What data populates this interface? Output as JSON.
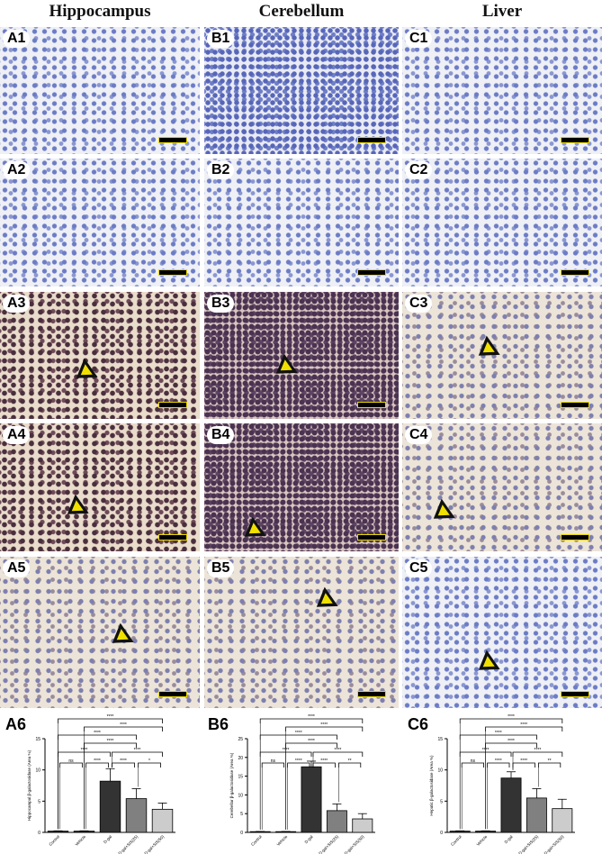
{
  "columns": [
    "Hippocampus",
    "Cerebellum",
    "Liver"
  ],
  "panels": [
    {
      "label": "A1",
      "stain": "neg",
      "arrow": false
    },
    {
      "label": "B1",
      "stain": "negdense",
      "arrow": false
    },
    {
      "label": "C1",
      "stain": "neg",
      "arrow": false
    },
    {
      "label": "A2",
      "stain": "neg",
      "arrow": false
    },
    {
      "label": "B2",
      "stain": "neg",
      "arrow": false
    },
    {
      "label": "C2",
      "stain": "neg",
      "arrow": false
    },
    {
      "label": "A3",
      "stain": "pos",
      "arrow": true
    },
    {
      "label": "B3",
      "stain": "posdense",
      "arrow": true
    },
    {
      "label": "C3",
      "stain": "mild",
      "arrow": true
    },
    {
      "label": "A4",
      "stain": "pos",
      "arrow": true
    },
    {
      "label": "B4",
      "stain": "posdense",
      "arrow": true
    },
    {
      "label": "C4",
      "stain": "mild",
      "arrow": true
    },
    {
      "label": "A5",
      "stain": "mild",
      "arrow": true
    },
    {
      "label": "B5",
      "stain": "mild",
      "arrow": true
    },
    {
      "label": "C5",
      "stain": "neg",
      "arrow": true
    }
  ],
  "colors": {
    "bars": [
      "#222222",
      "#222222",
      "#333333",
      "#808080",
      "#cccccc"
    ]
  },
  "chart_data": [
    {
      "type": "bar",
      "panel": "A6",
      "categories": [
        "Control",
        "Vehicle",
        "D-gal",
        "D-gal+SIS(25)",
        "D-gal+SIS(50)"
      ],
      "values": [
        0.2,
        0.2,
        8.2,
        5.4,
        3.7
      ],
      "errors": [
        0.05,
        0.05,
        2.0,
        1.6,
        1.0
      ],
      "ylabel": "Hippocampal β-galactosidase (Area %)",
      "ylim": [
        0,
        15
      ],
      "yticks": [
        0,
        5,
        10,
        15
      ],
      "significance": [
        [
          0,
          4,
          "****"
        ],
        [
          1,
          4,
          "****"
        ],
        [
          0,
          3,
          "****"
        ],
        [
          1,
          3,
          "****"
        ],
        [
          0,
          2,
          "****"
        ],
        [
          2,
          4,
          "****"
        ],
        [
          0,
          1,
          "ns"
        ],
        [
          1,
          2,
          "****"
        ],
        [
          2,
          3,
          "****"
        ],
        [
          3,
          4,
          "*"
        ]
      ]
    },
    {
      "type": "bar",
      "panel": "B6",
      "categories": [
        "Control",
        "Vehicle",
        "D-gal",
        "D-gal+SIS(25)",
        "D-gal+SIS(50)"
      ],
      "values": [
        0.2,
        0.2,
        17.5,
        5.8,
        3.6
      ],
      "errors": [
        0.05,
        0.05,
        1.5,
        1.8,
        1.4
      ],
      "ylabel": "Cerebellar β-galactosidase (Area %)",
      "ylim": [
        0,
        25
      ],
      "yticks": [
        0,
        5,
        10,
        15,
        20,
        25
      ],
      "significance": [
        [
          0,
          4,
          "****"
        ],
        [
          1,
          4,
          "****"
        ],
        [
          0,
          3,
          "****"
        ],
        [
          1,
          3,
          "****"
        ],
        [
          0,
          2,
          "****"
        ],
        [
          2,
          4,
          "****"
        ],
        [
          0,
          1,
          "ns"
        ],
        [
          1,
          2,
          "****"
        ],
        [
          2,
          3,
          "****"
        ],
        [
          3,
          4,
          "**"
        ]
      ]
    },
    {
      "type": "bar",
      "panel": "C6",
      "categories": [
        "Control",
        "Vehicle",
        "D-gal",
        "D-gal+SIS(25)",
        "D-gal+SIS(50)"
      ],
      "values": [
        0.2,
        0.2,
        8.7,
        5.5,
        3.8
      ],
      "errors": [
        0.05,
        0.05,
        1.0,
        1.5,
        1.5
      ],
      "ylabel": "Hepatic β-galactosidase (Area %)",
      "ylim": [
        0,
        15
      ],
      "yticks": [
        0,
        5,
        10,
        15
      ],
      "significance": [
        [
          0,
          4,
          "****"
        ],
        [
          1,
          4,
          "****"
        ],
        [
          0,
          3,
          "****"
        ],
        [
          1,
          3,
          "****"
        ],
        [
          0,
          2,
          "****"
        ],
        [
          2,
          4,
          "****"
        ],
        [
          0,
          1,
          "ns"
        ],
        [
          1,
          2,
          "****"
        ],
        [
          2,
          3,
          "****"
        ],
        [
          3,
          4,
          "**"
        ]
      ]
    }
  ]
}
